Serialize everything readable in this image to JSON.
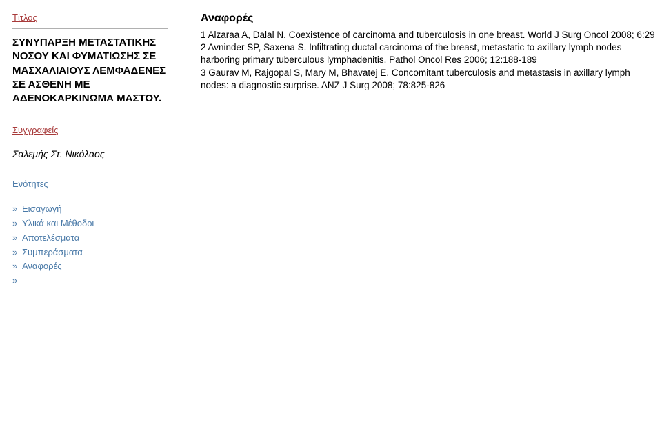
{
  "sidebar": {
    "titleLabel": "Τίτλος",
    "title": "ΣΥΝΥΠΑΡΞΗ ΜΕΤΑΣΤΑΤΙΚΗΣ ΝΟΣΟΥ ΚΑΙ ΦΥΜΑΤΙΩΣΗΣ ΣΕ ΜΑΣΧΑΛΙΑΙΟΥΣ ΛΕΜΦΑΔΕΝΕΣ ΣΕ ΑΣΘΕΝΗ ΜΕ ΑΔΕΝΟΚΑΡΚΙΝΩΜΑ ΜΑΣΤΟΥ.",
    "authorsLabel": "Συγγραφείς",
    "author": "Σαλεμής Στ. Νικόλαος",
    "sectionsLabel": "Ενότητες",
    "sections": [
      "Εισαγωγή",
      "Υλικά και Μέθοδοι",
      "Αποτελέσματα",
      "Συμπεράσματα",
      "Αναφορές"
    ],
    "chevron": "»"
  },
  "main": {
    "refHeading": "Αναφορές",
    "refBody": "1 Alzaraa A, Dalal N. Coexistence of carcinoma and tuberculosis in one breast. World J Surg Oncol 2008; 6:29\n2 Avninder SP, Saxena S. Infiltrating ductal carcinoma of the breast, metastatic to axillary lymph nodes harboring primary tuberculous lymphadenitis. Pathol Oncol Res 2006; 12:188-189\n3 Gaurav M, Rajgopal S, Mary M, Bhavatej E. Concomitant tuberculosis and metastasis in axillary lymph nodes: a diagnostic surprise. ANZ J Surg 2008; 78:825-826"
  }
}
